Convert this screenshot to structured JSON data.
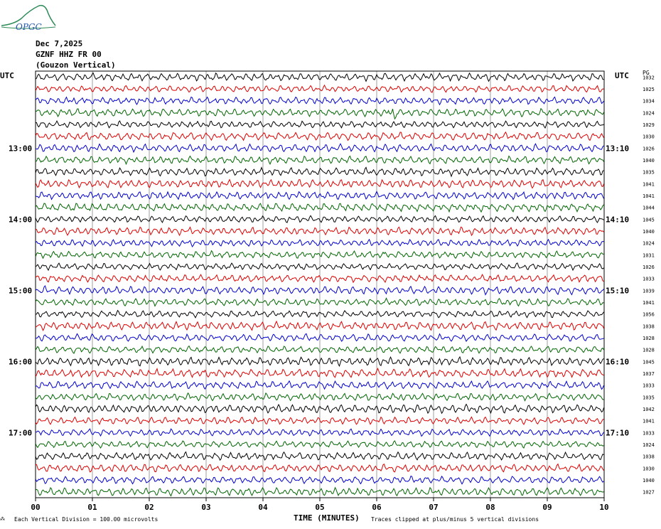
{
  "logo": {
    "text": "OPGC",
    "icon": "mountain-logo-icon"
  },
  "header": {
    "date": "Dec 7,2025",
    "channel": "GZNF HHZ FR 00",
    "station": "(Gouzon Vertical)"
  },
  "left_utc_label": "UTC",
  "right_utc_label": "UTC",
  "right_units_label": "PG",
  "footer": {
    "division_note": "Each Vertical Division =  100.00 microvolts",
    "xlabel": "TIME (MINUTES)",
    "clip_note": "Traces clipped at plus/minus 5 vertical divisions"
  },
  "chart_data": {
    "type": "line",
    "title": "",
    "xlabel": "TIME (MINUTES)",
    "ylabel": "",
    "xlim": [
      0,
      10
    ],
    "x_ticks": [
      "00",
      "01",
      "02",
      "03",
      "04",
      "05",
      "06",
      "07",
      "08",
      "09",
      "10"
    ],
    "trace_count": 36,
    "trace_colors": [
      "#000000",
      "#dd0000",
      "#0000cc",
      "#006600"
    ],
    "left_hour_labels": [
      {
        "trace_index": 6,
        "label": "13:00"
      },
      {
        "trace_index": 12,
        "label": "14:00"
      },
      {
        "trace_index": 18,
        "label": "15:00"
      },
      {
        "trace_index": 24,
        "label": "16:00"
      },
      {
        "trace_index": 30,
        "label": "17:00"
      }
    ],
    "right_hour_labels": [
      {
        "trace_index": 6,
        "label": "13:10"
      },
      {
        "trace_index": 12,
        "label": "14:10"
      },
      {
        "trace_index": 18,
        "label": "15:10"
      },
      {
        "trace_index": 24,
        "label": "16:10"
      },
      {
        "trace_index": 30,
        "label": "17:10"
      }
    ],
    "right_values": [
      "1032",
      "1025",
      "1034",
      "1024",
      "1029",
      "1030",
      "1026",
      "1040",
      "1035",
      "1041",
      "1041",
      "1044",
      "1045",
      "1040",
      "1024",
      "1031",
      "1026",
      "1033",
      "1039",
      "1041",
      "1056",
      "1038",
      "1028",
      "1028",
      "1045",
      "1037",
      "1033",
      "1035",
      "1042",
      "1041",
      "1033",
      "1024",
      "1038",
      "1030",
      "1040",
      "1027"
    ],
    "event": {
      "trace_index": 3,
      "minute_start": 6.2,
      "minute_end": 6.35
    },
    "grid": true
  }
}
